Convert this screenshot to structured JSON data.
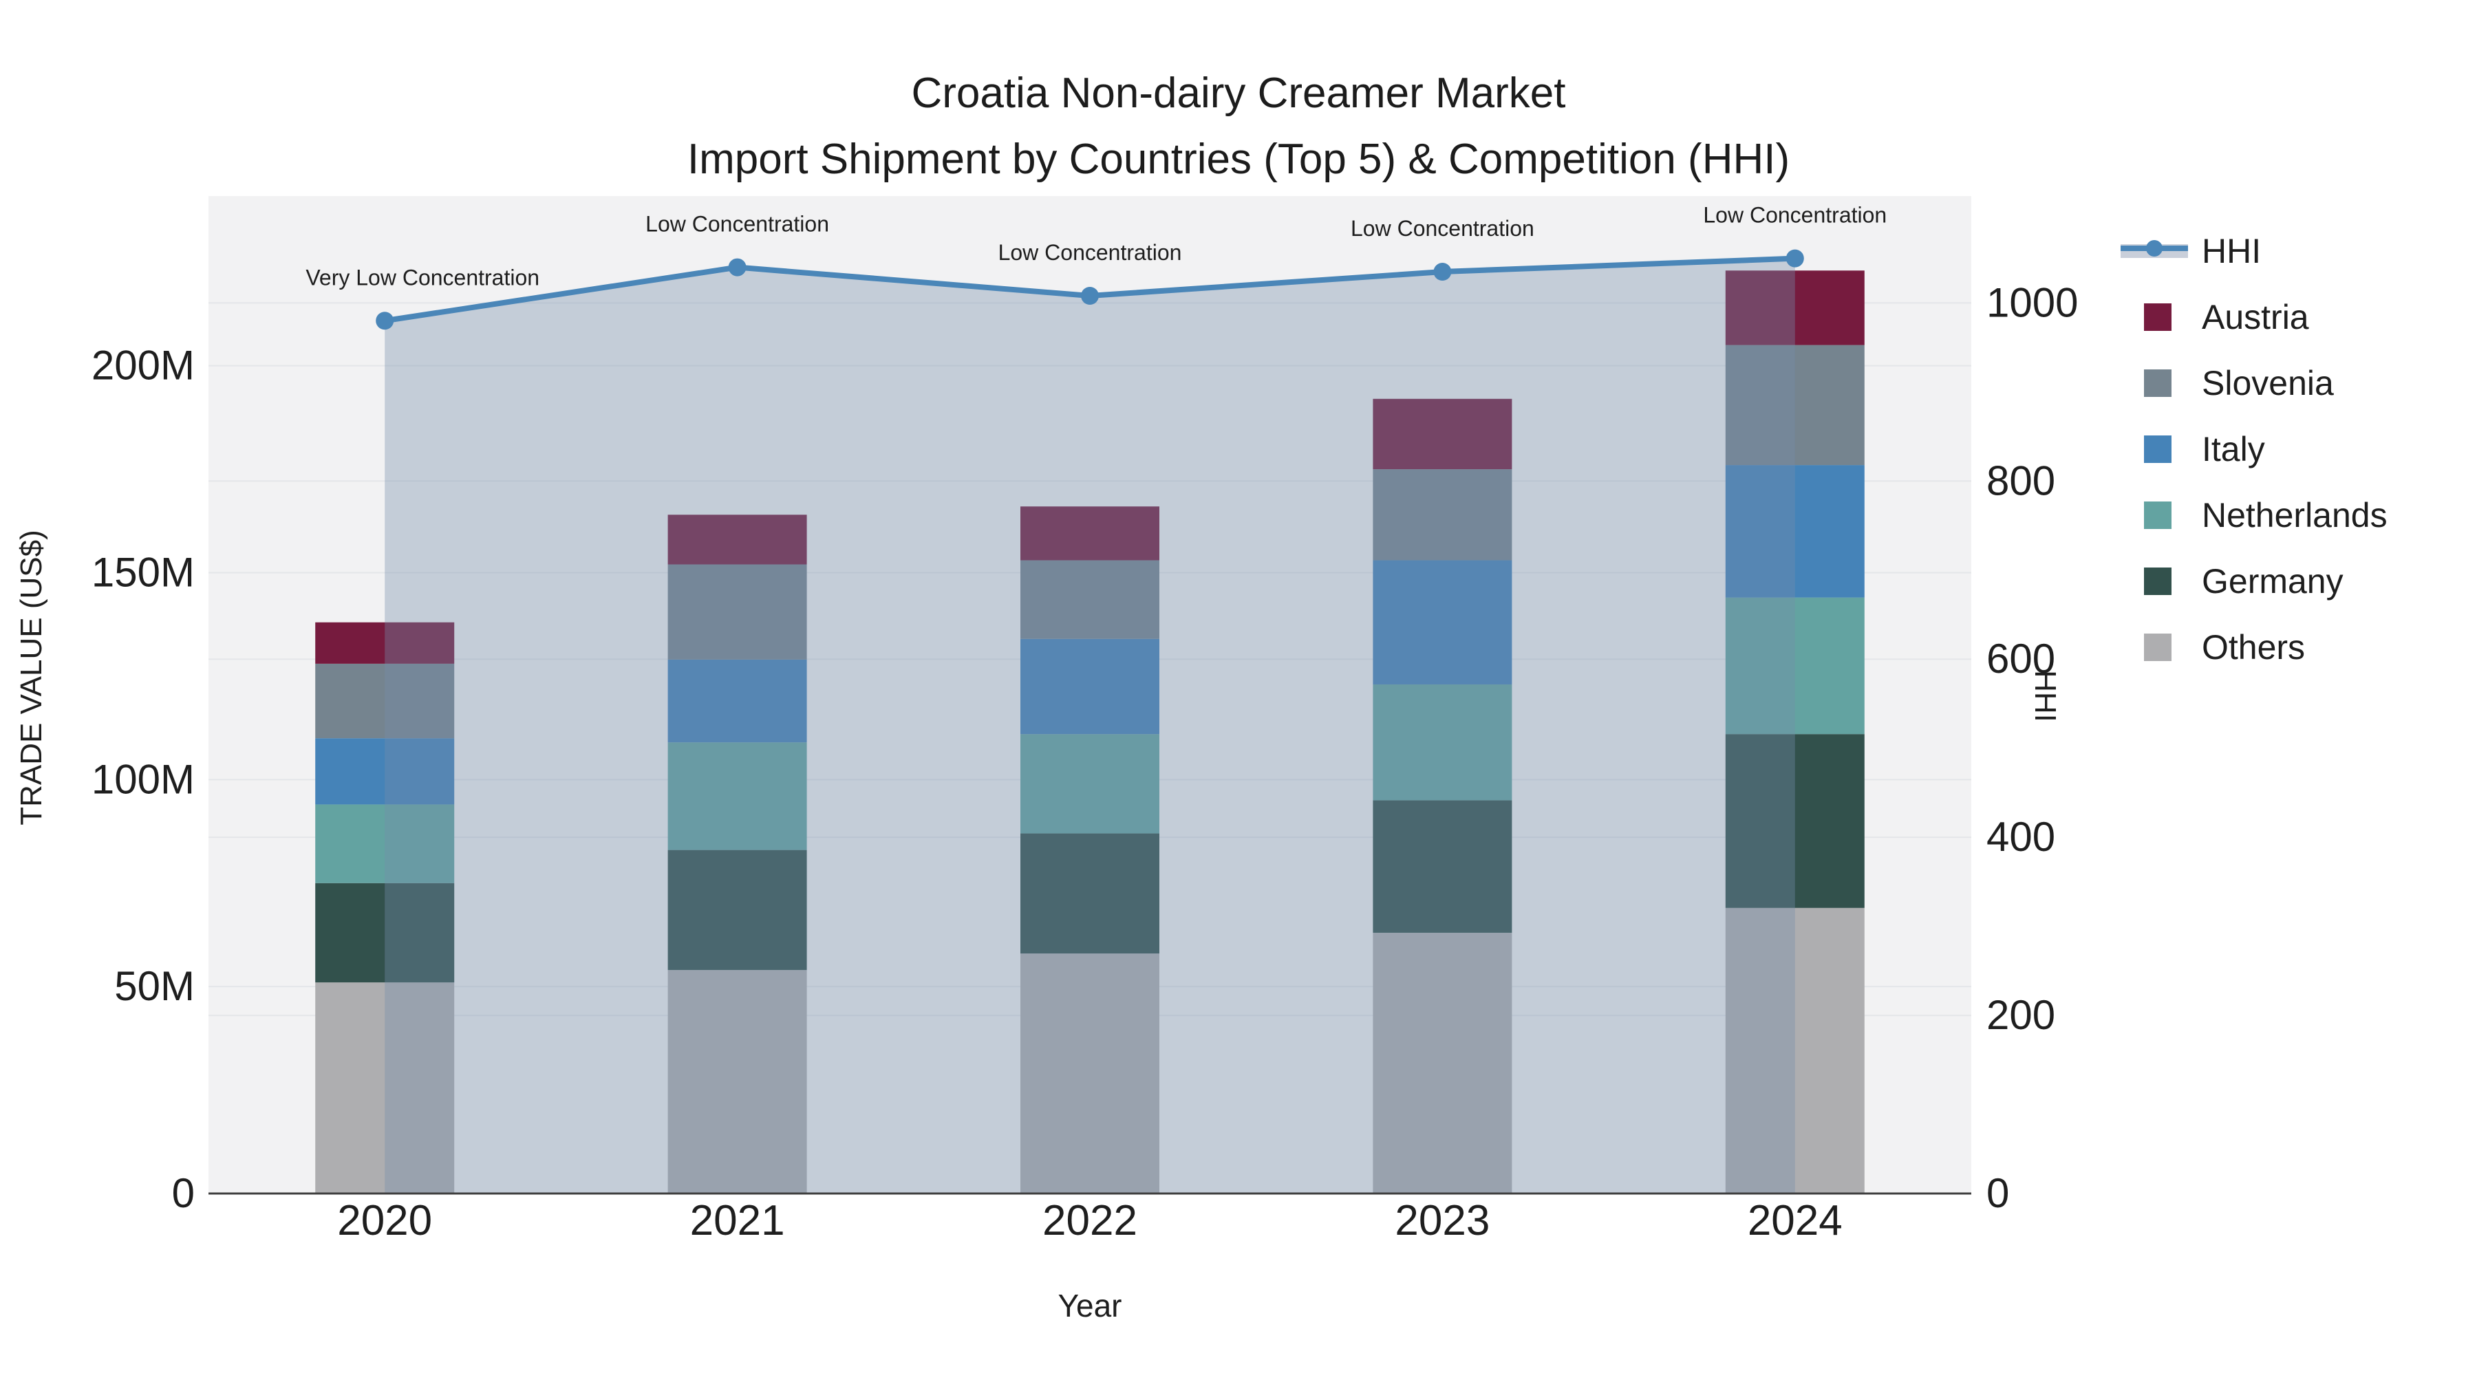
{
  "title": {
    "line1": "Croatia Non-dairy Creamer Market",
    "line2": "Import Shipment by Countries (Top 5) & Competition (HHI)"
  },
  "axes": {
    "left_title": "TRADE VALUE (US$)",
    "bottom_title": "Year",
    "right_title": "HHI",
    "left_tick_labels": [
      "0",
      "50M",
      "100M",
      "150M",
      "200M"
    ],
    "left_tick_values": [
      0,
      50,
      100,
      150,
      200
    ],
    "right_tick_labels": [
      "0",
      "200",
      "400",
      "600",
      "800",
      "1000"
    ],
    "right_tick_values": [
      0,
      200,
      400,
      600,
      800,
      1000
    ]
  },
  "chart_data": {
    "type": "bar",
    "subtype": "stacked-bars-with-line-overlay",
    "title": "Croatia Non-dairy Creamer Market — Import Shipment by Countries (Top 5) & Competition (HHI)",
    "xlabel": "Year",
    "ylabel": "TRADE VALUE (US$)",
    "ylabel_right": "HHI",
    "unit": "million US$",
    "categories": [
      "2020",
      "2021",
      "2022",
      "2023",
      "2024"
    ],
    "series": [
      {
        "name": "Austria",
        "color": "#761b3e",
        "values": [
          10,
          12,
          13,
          17,
          18
        ]
      },
      {
        "name": "Slovenia",
        "color": "#75848f",
        "values": [
          18,
          23,
          19,
          22,
          29
        ]
      },
      {
        "name": "Italy",
        "color": "#4583b8",
        "values": [
          16,
          20,
          23,
          30,
          32
        ]
      },
      {
        "name": "Netherlands",
        "color": "#63a3a1",
        "values": [
          19,
          26,
          24,
          28,
          33
        ]
      },
      {
        "name": "Germany",
        "color": "#32514c",
        "values": [
          24,
          29,
          29,
          32,
          42
        ]
      },
      {
        "name": "Others",
        "color": "#aeaeb0",
        "values": [
          51,
          54,
          58,
          63,
          69
        ]
      }
    ],
    "stack_totals": [
      138,
      164,
      166,
      192,
      223
    ],
    "line_series": {
      "name": "HHI",
      "axis": "right",
      "color": "#4a86b8",
      "fill_color": "rgba(118,142,172,0.37)",
      "values": [
        980,
        1040,
        1008,
        1035,
        1050
      ]
    },
    "annotations": [
      "Very Low Concentration",
      "Low Concentration",
      "Low Concentration",
      "Low Concentration",
      "Low Concentration"
    ],
    "legend": [
      "HHI",
      "Austria",
      "Slovenia",
      "Italy",
      "Netherlands",
      "Germany",
      "Others"
    ],
    "legend_position": "right",
    "grid": true,
    "left_ylim": [
      0,
      241
    ],
    "right_ylim": [
      0,
      1120
    ]
  },
  "colors": {
    "plot_bg": "#f2f2f3",
    "grid": "#e4e6e9",
    "axis_line": "#3f3f3f",
    "text": "#1e1e1e",
    "legend_fill_sample": "#c9cfda"
  }
}
